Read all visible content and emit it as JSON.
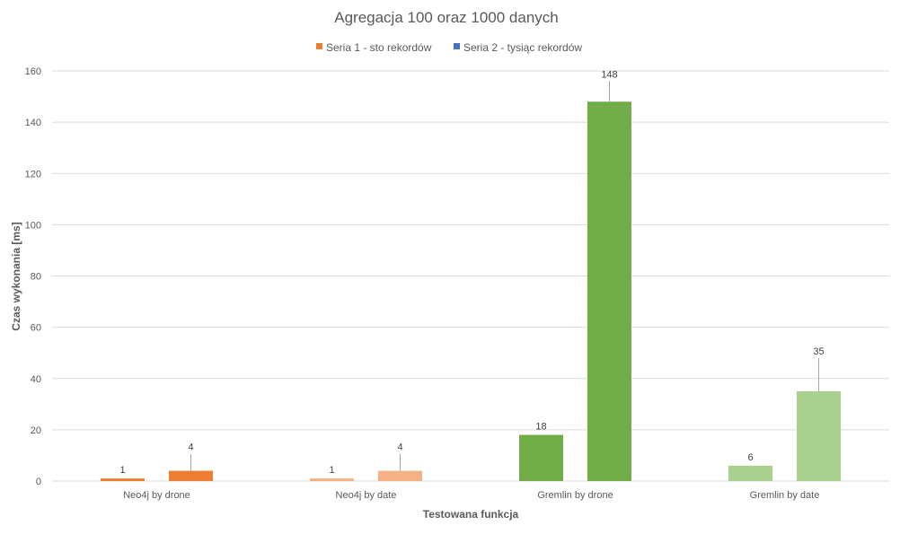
{
  "chart_data": {
    "type": "bar",
    "title": "Agregacja 100 oraz 1000 danych",
    "xlabel": "Testowana funkcja",
    "ylabel": "Czas wykonania [ms]",
    "ylim": [
      0,
      160
    ],
    "yticks": [
      0,
      20,
      40,
      60,
      80,
      100,
      120,
      140,
      160
    ],
    "grid": true,
    "legend_position": "top",
    "categories": [
      "Neo4j by drone",
      "Neo4j by date",
      "Gremlin by drone",
      "Gremlin by date"
    ],
    "series": [
      {
        "name": "Seria 1 - sto rekordów",
        "legend_color": "#ED7D31",
        "values": [
          1,
          1,
          18,
          6
        ],
        "data_labels": [
          "1",
          "1",
          "18",
          "6"
        ],
        "bar_colors": [
          "#ED7D31",
          "#F4B183",
          "#70AD47",
          "#A9D18E"
        ]
      },
      {
        "name": "Seria 2 - tysiąc rekordów",
        "legend_color": "#4472C4",
        "values": [
          4,
          4,
          148,
          35
        ],
        "data_labels": [
          "4",
          "4",
          "148",
          "35"
        ],
        "bar_colors": [
          "#ED7D31",
          "#F4B183",
          "#70AD47",
          "#A9D18E"
        ]
      }
    ],
    "colors": {
      "gridline": "#D9D9D9",
      "axis_text": "#595959",
      "title_text": "#595959",
      "label_text": "#404040",
      "leader_line": "#A6A6A6"
    }
  }
}
